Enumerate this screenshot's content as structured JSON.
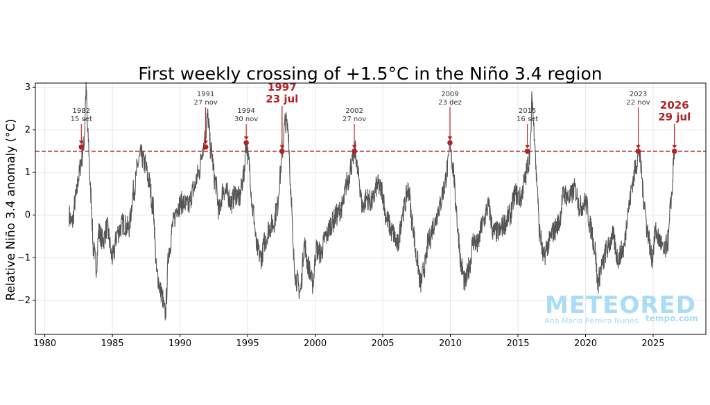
{
  "chart_data": {
    "type": "line",
    "title": "First weekly crossing of +1.5°C in the Niño 3.4 region",
    "xlabel": "",
    "ylabel": "Relative Niño 3.4 anomaly (°C)",
    "xlim": [
      1979.3,
      2028.9
    ],
    "ylim": [
      -2.8,
      3.1
    ],
    "x_ticks": [
      1980,
      1985,
      1990,
      1995,
      2000,
      2005,
      2010,
      2015,
      2020,
      2025
    ],
    "y_ticks": [
      -2,
      -1,
      0,
      1,
      2,
      3
    ],
    "grid": true,
    "threshold": {
      "value": 1.5,
      "style": "dashed",
      "color": "#b22222"
    },
    "colors": {
      "line": "#555555",
      "accent": "#b22222",
      "watermark": "#a9dcf5"
    },
    "series": [
      {
        "values_x": [
          1981.8,
          1982.0,
          1982.3,
          1982.5,
          1982.7,
          1982.9,
          1983.05,
          1983.2,
          1983.4,
          1983.6,
          1983.8,
          1984.0,
          1984.3,
          1984.6,
          1985.0,
          1985.4,
          1985.8,
          1986.2,
          1986.6,
          1986.9,
          1987.1,
          1987.4,
          1987.7,
          1988.0,
          1988.3,
          1988.6,
          1988.9,
          1989.2,
          1989.5,
          1989.8,
          1990.2,
          1990.6,
          1991.0,
          1991.4,
          1991.7,
          1991.9,
          1992.05,
          1992.3,
          1992.6,
          1992.9,
          1993.2,
          1993.5,
          1993.8,
          1994.1,
          1994.4,
          1994.7,
          1994.9,
          1995.1,
          1995.4,
          1995.7,
          1996.0,
          1996.3,
          1996.6,
          1996.9,
          1997.2,
          1997.4,
          1997.55,
          1997.8,
          1998.0,
          1998.2,
          1998.4,
          1998.6,
          1998.9,
          1999.2,
          1999.5,
          1999.8,
          2000.1,
          2000.4,
          2000.8,
          2001.2,
          2001.6,
          2002.0,
          2002.4,
          2002.7,
          2002.95,
          2003.2,
          2003.5,
          2003.8,
          2004.2,
          2004.6,
          2004.9,
          2005.3,
          2005.7,
          2006.1,
          2006.5,
          2006.9,
          2007.2,
          2007.5,
          2007.8,
          2008.1,
          2008.4,
          2008.8,
          2009.2,
          2009.5,
          2009.8,
          2010.0,
          2010.2,
          2010.4,
          2010.6,
          2010.8,
          2011.1,
          2011.4,
          2011.7,
          2012.0,
          2012.4,
          2012.8,
          2013.2,
          2013.6,
          2014.0,
          2014.4,
          2014.8,
          2015.2,
          2015.5,
          2015.75,
          2015.9,
          2016.05,
          2016.2,
          2016.4,
          2016.6,
          2016.9,
          2017.2,
          2017.6,
          2018.0,
          2018.4,
          2018.8,
          2019.2,
          2019.6,
          2020.0,
          2020.4,
          2020.7,
          2020.9,
          2021.2,
          2021.6,
          2022.0,
          2022.4,
          2022.8,
          2023.2,
          2023.5,
          2023.75,
          2023.95,
          2024.1,
          2024.3,
          2024.6,
          2024.9,
          2025.2,
          2025.5,
          2025.8,
          2026.1,
          2026.35,
          2026.58
        ],
        "values_y": [
          0.0,
          -0.2,
          0.4,
          0.9,
          1.3,
          1.7,
          2.9,
          1.8,
          0.5,
          -0.8,
          -1.2,
          -0.4,
          -0.6,
          -0.3,
          -1.0,
          -0.4,
          -0.2,
          -0.3,
          0.6,
          1.2,
          1.4,
          1.2,
          0.8,
          0.2,
          -1.4,
          -1.8,
          -2.3,
          -0.8,
          -0.2,
          0.2,
          0.3,
          0.2,
          0.6,
          1.0,
          1.6,
          1.9,
          2.3,
          1.5,
          0.8,
          0.1,
          0.6,
          0.5,
          0.3,
          0.5,
          0.4,
          0.9,
          1.7,
          1.2,
          0.1,
          -0.8,
          -1.0,
          -0.6,
          -0.3,
          -0.2,
          0.2,
          0.9,
          1.5,
          2.2,
          2.0,
          0.6,
          -1.0,
          -1.5,
          -1.8,
          -0.7,
          -1.2,
          -1.6,
          -0.8,
          -0.9,
          -0.5,
          -0.2,
          0.0,
          0.2,
          0.8,
          1.2,
          1.5,
          0.9,
          0.2,
          0.4,
          0.3,
          0.7,
          0.6,
          -0.1,
          -0.4,
          -0.7,
          0.1,
          0.6,
          -0.2,
          -1.0,
          -1.6,
          -1.2,
          -0.6,
          -0.2,
          0.2,
          0.6,
          1.1,
          1.7,
          1.1,
          0.3,
          -0.5,
          -1.2,
          -1.6,
          -1.2,
          -0.6,
          -0.7,
          -0.2,
          0.2,
          -0.4,
          -0.4,
          -0.2,
          0.0,
          0.5,
          0.4,
          0.8,
          1.2,
          1.5,
          2.7,
          2.0,
          0.8,
          -0.4,
          -1.0,
          -0.7,
          -0.4,
          -0.2,
          0.5,
          0.4,
          0.6,
          0.2,
          0.3,
          -0.3,
          -0.8,
          -1.6,
          -1.2,
          -0.8,
          -0.5,
          -1.0,
          -0.8,
          0.2,
          0.8,
          1.2,
          1.5,
          1.1,
          0.4,
          -0.4,
          -1.0,
          -0.4,
          -0.6,
          -0.9,
          -0.6,
          0.4,
          1.5
        ]
      }
    ],
    "annotations": [
      {
        "year": "1982",
        "date": "15 set",
        "x": 1982.7,
        "y": 1.6,
        "emphasis": false
      },
      {
        "year": "1991",
        "date": "27 nov",
        "x": 1991.9,
        "y": 1.6,
        "emphasis": false
      },
      {
        "year": "1994",
        "date": "30 nov",
        "x": 1994.9,
        "y": 1.7,
        "emphasis": false
      },
      {
        "year": "1997",
        "date": "23 jul",
        "x": 1997.55,
        "y": 1.5,
        "emphasis": true
      },
      {
        "year": "2002",
        "date": "27 nov",
        "x": 2002.9,
        "y": 1.5,
        "emphasis": false
      },
      {
        "year": "2009",
        "date": "23 dez",
        "x": 2009.97,
        "y": 1.7,
        "emphasis": false
      },
      {
        "year": "2015",
        "date": "16 set",
        "x": 2015.7,
        "y": 1.5,
        "emphasis": false
      },
      {
        "year": "2023",
        "date": "22 nov",
        "x": 2023.9,
        "y": 1.5,
        "emphasis": false
      },
      {
        "year": "2026",
        "date": "29 jul",
        "x": 2026.58,
        "y": 1.5,
        "emphasis": true
      }
    ],
    "watermark": {
      "brand": "METEORED",
      "author": "Ana Maria Pereira Nunes",
      "site": "tempo.com"
    }
  }
}
